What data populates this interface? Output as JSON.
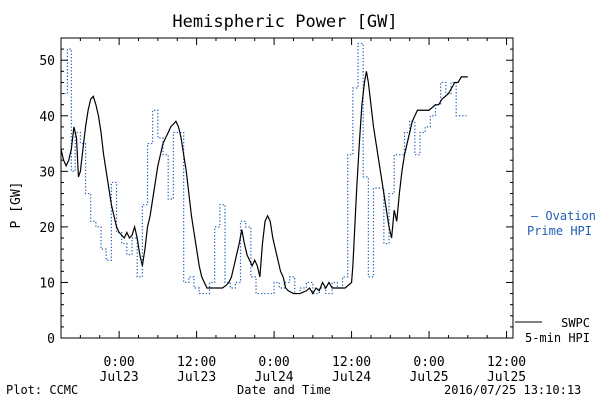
{
  "chart_data": {
    "type": "line",
    "title": "Hemispheric Power [GW]",
    "xlabel": "Date and Time",
    "ylabel": "P [GW]",
    "ylim": [
      0,
      54
    ],
    "xlim_hours": [
      0,
      70
    ],
    "y_ticks": [
      0,
      10,
      20,
      30,
      40,
      50
    ],
    "x_ticks": [
      {
        "t": 9,
        "line1": "0:00",
        "line2": "Jul23"
      },
      {
        "t": 21,
        "line1": "12:00",
        "line2": "Jul23"
      },
      {
        "t": 33,
        "line1": "0:00",
        "line2": "Jul24"
      },
      {
        "t": 45,
        "line1": "12:00",
        "line2": "Jul24"
      },
      {
        "t": 57,
        "line1": "0:00",
        "line2": "Jul25"
      },
      {
        "t": 69,
        "line1": "12:00",
        "line2": "Jul25"
      }
    ],
    "grid": false,
    "legend_position": "right",
    "series": [
      {
        "name": "SWPC 5-min HPI",
        "color": "#000000",
        "style": "solid",
        "points": [
          [
            0,
            34
          ],
          [
            0.4,
            32
          ],
          [
            0.8,
            31
          ],
          [
            1.2,
            32
          ],
          [
            1.6,
            34
          ],
          [
            2,
            38
          ],
          [
            2.4,
            36
          ],
          [
            2.7,
            29
          ],
          [
            3,
            30
          ],
          [
            3.4,
            34
          ],
          [
            3.8,
            38
          ],
          [
            4.2,
            41
          ],
          [
            4.6,
            43
          ],
          [
            5,
            43.5
          ],
          [
            5.4,
            42
          ],
          [
            5.8,
            40
          ],
          [
            6.2,
            37
          ],
          [
            6.6,
            33
          ],
          [
            7,
            30
          ],
          [
            7.4,
            27
          ],
          [
            7.8,
            24
          ],
          [
            8.2,
            22
          ],
          [
            8.6,
            20
          ],
          [
            9,
            19
          ],
          [
            9.4,
            18.5
          ],
          [
            9.8,
            18
          ],
          [
            10.2,
            19
          ],
          [
            10.6,
            18
          ],
          [
            11,
            18.5
          ],
          [
            11.4,
            20
          ],
          [
            11.8,
            18
          ],
          [
            12.2,
            15
          ],
          [
            12.6,
            13
          ],
          [
            13,
            16
          ],
          [
            13.4,
            20
          ],
          [
            13.8,
            22
          ],
          [
            14.2,
            25
          ],
          [
            14.6,
            28
          ],
          [
            15,
            31
          ],
          [
            15.4,
            33
          ],
          [
            15.8,
            35
          ],
          [
            16.2,
            36
          ],
          [
            16.6,
            37
          ],
          [
            17,
            38
          ],
          [
            17.4,
            38.5
          ],
          [
            17.8,
            39
          ],
          [
            18.2,
            38
          ],
          [
            18.6,
            36
          ],
          [
            19,
            33
          ],
          [
            19.4,
            30
          ],
          [
            19.8,
            26
          ],
          [
            20.2,
            22
          ],
          [
            20.6,
            19
          ],
          [
            21,
            16
          ],
          [
            21.4,
            13
          ],
          [
            21.8,
            11
          ],
          [
            22.2,
            10
          ],
          [
            22.6,
            9
          ],
          [
            23,
            9
          ],
          [
            24,
            9
          ],
          [
            25,
            9
          ],
          [
            25.6,
            9.5
          ],
          [
            26,
            10
          ],
          [
            26.4,
            11
          ],
          [
            26.8,
            13
          ],
          [
            27.2,
            15
          ],
          [
            27.6,
            17
          ],
          [
            28,
            19.5
          ],
          [
            28.4,
            17
          ],
          [
            28.8,
            15
          ],
          [
            29.2,
            14
          ],
          [
            29.6,
            13
          ],
          [
            30,
            14
          ],
          [
            30.4,
            13
          ],
          [
            30.8,
            11
          ],
          [
            31.2,
            17
          ],
          [
            31.6,
            21
          ],
          [
            32,
            22
          ],
          [
            32.4,
            21
          ],
          [
            32.8,
            18
          ],
          [
            33.2,
            16
          ],
          [
            33.6,
            14
          ],
          [
            34,
            12
          ],
          [
            34.4,
            11
          ],
          [
            34.8,
            9
          ],
          [
            35.2,
            8.5
          ],
          [
            36,
            8
          ],
          [
            37,
            8
          ],
          [
            38,
            8.5
          ],
          [
            38.5,
            9
          ],
          [
            39,
            8
          ],
          [
            39.5,
            9
          ],
          [
            40,
            8.5
          ],
          [
            40.5,
            10
          ],
          [
            41,
            9
          ],
          [
            41.5,
            10
          ],
          [
            42,
            9
          ],
          [
            43,
            9
          ],
          [
            44,
            9
          ],
          [
            45,
            10
          ],
          [
            45.2,
            13
          ],
          [
            45.5,
            20
          ],
          [
            45.8,
            27
          ],
          [
            46.2,
            35
          ],
          [
            46.6,
            42
          ],
          [
            47,
            46
          ],
          [
            47.3,
            48
          ],
          [
            47.6,
            46
          ],
          [
            48,
            42
          ],
          [
            48.4,
            38
          ],
          [
            48.8,
            35
          ],
          [
            49.2,
            32
          ],
          [
            49.6,
            29
          ],
          [
            50,
            26
          ],
          [
            50.4,
            23
          ],
          [
            50.8,
            20
          ],
          [
            51.2,
            18
          ],
          [
            51.6,
            23
          ],
          [
            52,
            21
          ],
          [
            52.4,
            26
          ],
          [
            52.8,
            30
          ],
          [
            53.2,
            33
          ],
          [
            53.6,
            35
          ],
          [
            54,
            37
          ],
          [
            54.4,
            39
          ],
          [
            54.8,
            40
          ],
          [
            55.2,
            41
          ],
          [
            56,
            41
          ],
          [
            57,
            41
          ],
          [
            58,
            42
          ],
          [
            58.5,
            42
          ],
          [
            59,
            43
          ],
          [
            60,
            44
          ],
          [
            60.5,
            45
          ],
          [
            61,
            46
          ],
          [
            61.5,
            46
          ],
          [
            62,
            47
          ],
          [
            63,
            47
          ]
        ]
      },
      {
        "name": "Ovation Prime HPI",
        "color": "#1f5fb5",
        "style": "dotted-step",
        "points": [
          [
            0,
            44
          ],
          [
            1,
            52
          ],
          [
            1.6,
            30
          ],
          [
            2.2,
            37
          ],
          [
            3,
            35
          ],
          [
            3.8,
            26
          ],
          [
            4.6,
            21
          ],
          [
            5.4,
            20
          ],
          [
            6.2,
            16
          ],
          [
            7,
            14
          ],
          [
            7.8,
            28
          ],
          [
            8.6,
            19
          ],
          [
            9.4,
            17
          ],
          [
            10.2,
            15
          ],
          [
            11,
            18
          ],
          [
            11.8,
            11
          ],
          [
            12.6,
            24
          ],
          [
            13.4,
            35
          ],
          [
            14.2,
            41
          ],
          [
            15,
            36
          ],
          [
            15.8,
            33
          ],
          [
            16.6,
            25
          ],
          [
            17.4,
            37
          ],
          [
            18.2,
            37
          ],
          [
            19,
            10
          ],
          [
            19.8,
            11
          ],
          [
            20.6,
            9
          ],
          [
            21.4,
            8
          ],
          [
            22.2,
            8
          ],
          [
            23,
            10
          ],
          [
            23.8,
            20
          ],
          [
            24.6,
            24
          ],
          [
            25.4,
            10
          ],
          [
            26.2,
            9
          ],
          [
            27,
            10
          ],
          [
            27.8,
            21
          ],
          [
            28.6,
            20
          ],
          [
            29.4,
            11
          ],
          [
            30.2,
            8
          ],
          [
            31,
            8
          ],
          [
            32,
            8
          ],
          [
            33,
            10
          ],
          [
            33.8,
            9
          ],
          [
            34.6,
            10
          ],
          [
            35.4,
            11
          ],
          [
            36.2,
            8
          ],
          [
            37,
            9
          ],
          [
            38,
            10
          ],
          [
            39,
            8
          ],
          [
            40,
            9
          ],
          [
            41,
            8
          ],
          [
            42,
            10
          ],
          [
            42.8,
            9
          ],
          [
            43.6,
            11
          ],
          [
            44.4,
            33
          ],
          [
            45.2,
            45
          ],
          [
            46,
            53
          ],
          [
            46.8,
            29
          ],
          [
            47.6,
            11
          ],
          [
            48.4,
            27
          ],
          [
            49.2,
            27
          ],
          [
            50,
            17
          ],
          [
            50.8,
            26
          ],
          [
            51.6,
            33
          ],
          [
            52.4,
            33
          ],
          [
            53.2,
            37
          ],
          [
            54,
            39
          ],
          [
            54.8,
            33
          ],
          [
            55.6,
            37
          ],
          [
            56.4,
            38
          ],
          [
            57.2,
            40
          ],
          [
            58,
            42
          ],
          [
            58.8,
            46
          ],
          [
            59.6,
            44
          ],
          [
            60.4,
            46
          ],
          [
            61.2,
            40
          ],
          [
            62,
            40
          ]
        ]
      }
    ]
  },
  "legend": {
    "ovation_line1": "– Ovation",
    "ovation_line2": "Prime HPI",
    "swpc_line1": "SWPC",
    "swpc_line2": "5-min HPI"
  },
  "footer": {
    "left": "Plot: CCMC",
    "center": "Date and Time",
    "right": "2016/07/25 13:10:13"
  }
}
